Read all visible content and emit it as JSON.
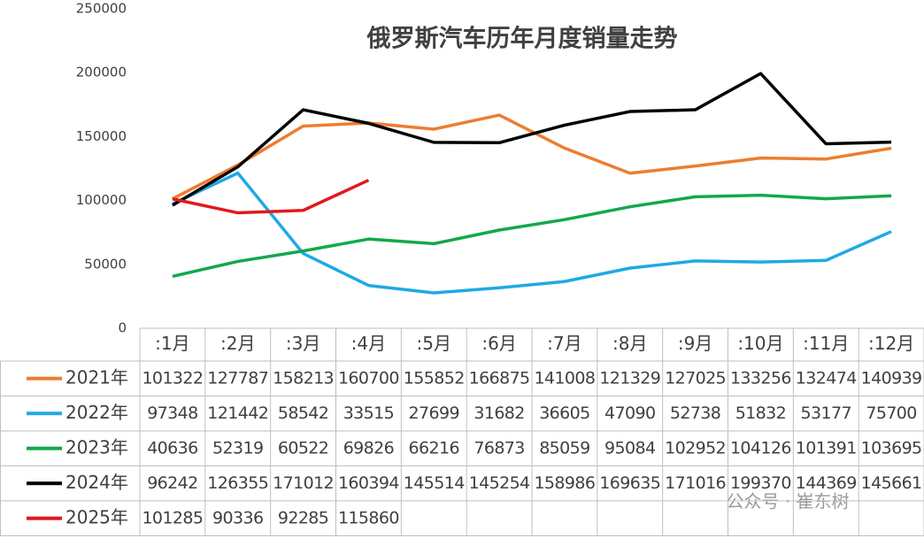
{
  "chart_data": {
    "type": "line",
    "title": "俄罗斯汽车历年月度销量走势",
    "categories": [
      ":1月",
      ":2月",
      ":3月",
      ":4月",
      ":5月",
      ":6月",
      ":7月",
      ":8月",
      ":9月",
      ":10月",
      ":11月",
      ":12月"
    ],
    "series": [
      {
        "name": "2021年",
        "color": "#ed7d31",
        "values": [
          101322,
          127787,
          158213,
          160700,
          155852,
          166875,
          141008,
          121329,
          127025,
          133256,
          132474,
          140939
        ]
      },
      {
        "name": "2022年",
        "color": "#1fa9e6",
        "values": [
          97348,
          121442,
          58542,
          33515,
          27699,
          31682,
          36605,
          47090,
          52738,
          51832,
          53177,
          75700
        ]
      },
      {
        "name": "2023年",
        "color": "#13a84a",
        "values": [
          40636,
          52319,
          60522,
          69826,
          66216,
          76873,
          85059,
          95084,
          102952,
          104126,
          101391,
          103695
        ]
      },
      {
        "name": "2024年",
        "color": "#000000",
        "values": [
          96242,
          126355,
          171012,
          160394,
          145514,
          145254,
          158986,
          169635,
          171016,
          199370,
          144369,
          145661
        ]
      },
      {
        "name": "2025年",
        "color": "#e0191c",
        "values": [
          101285,
          90336,
          92285,
          115860,
          null,
          null,
          null,
          null,
          null,
          null,
          null,
          null
        ]
      }
    ],
    "ylim": [
      0,
      250000
    ],
    "yticks": [
      0,
      50000,
      100000,
      150000,
      200000,
      250000
    ],
    "watermark": "公众号 · 崔东树"
  }
}
